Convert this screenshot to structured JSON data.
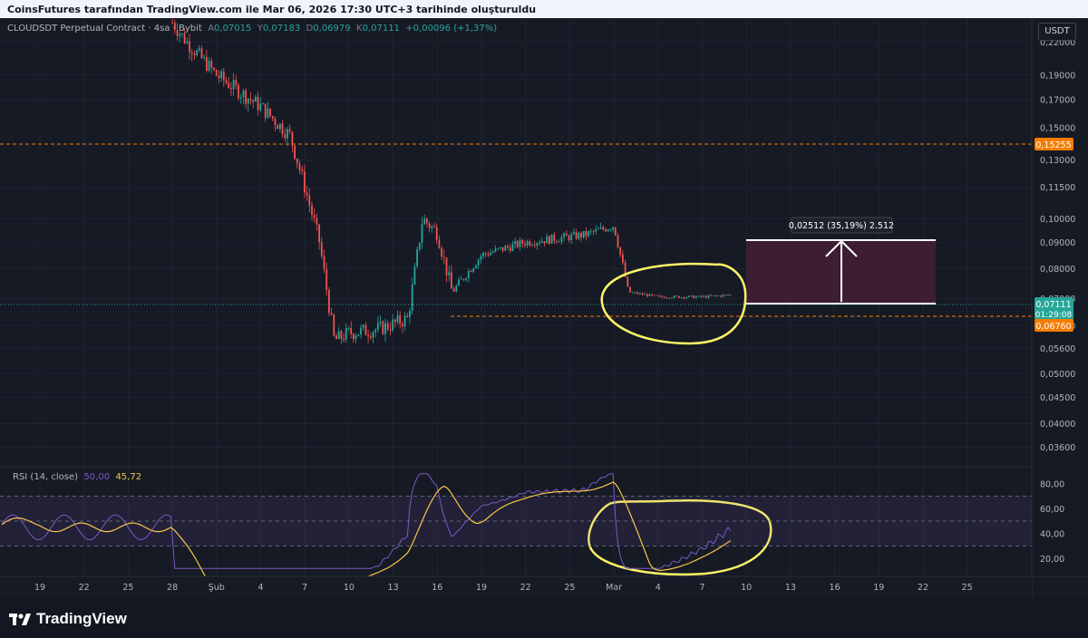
{
  "header": {
    "attribution": "CoinsFutures tarafından TradingView.com ile Mar 06, 2026 17:30 UTC+3 tarihinde oluşturuldu"
  },
  "legend": {
    "symbol": "CLOUDSDT Perpetual Contract · 4sa · Bybit",
    "o_label": "A",
    "o_value": "0,07015",
    "h_label": "Y",
    "h_value": "0,07183",
    "l_label": "D",
    "l_value": "0,06979",
    "c_label": "K",
    "c_value": "0,07111",
    "change": "+0,00096 (+1,37%)"
  },
  "currency_button": "USDT",
  "rsi_legend": {
    "name": "RSI (14, close)",
    "value1": "50,00",
    "value2": "45,72"
  },
  "brand": {
    "name": "TradingView"
  },
  "colors": {
    "bg": "#161a25",
    "up": "#26a69a",
    "down": "#ef5350",
    "orange": "#f57c00",
    "rsi_line": "#7e57c2",
    "rsi_ma": "#f7c547",
    "annotation": "#fff566"
  },
  "chart_data": [
    {
      "type": "candlestick",
      "title": "CLOUDSDT Perpetual Contract · 4sa · Bybit",
      "y_axis_ticks": [
        "0,22000",
        "0,19000",
        "0,17000",
        "0,15000",
        "0,13000",
        "0,11500",
        "0,10000",
        "0,09000",
        "0,08000",
        "0,07000",
        "0,06200",
        "0,05600",
        "0,05000",
        "0,04500",
        "0,04000",
        "0,03600"
      ],
      "y_scale": "log",
      "ylim": [
        0.033,
        0.245
      ],
      "x_axis_ticks": [
        "19",
        "22",
        "25",
        "28",
        "Şub",
        "4",
        "7",
        "10",
        "13",
        "16",
        "19",
        "22",
        "25",
        "Mar",
        "4",
        "7",
        "10",
        "13",
        "16",
        "19",
        "22",
        "25"
      ],
      "price_path_key_points": [
        {
          "x": "28 Oca",
          "y": 0.24
        },
        {
          "x": "29 Oca",
          "y": 0.22
        },
        {
          "x": "31 Oca",
          "y": 0.19
        },
        {
          "x": "2 Şub",
          "y": 0.165
        },
        {
          "x": "4 Şub",
          "y": 0.145
        },
        {
          "x": "5 Şub",
          "y": 0.115
        },
        {
          "x": "6 Şub",
          "y": 0.09
        },
        {
          "x": "7 Şub",
          "y": 0.058
        },
        {
          "x": "8 Şub",
          "y": 0.06
        },
        {
          "x": "10 Şub",
          "y": 0.061
        },
        {
          "x": "12 Şub",
          "y": 0.064
        },
        {
          "x": "13 Şub",
          "y": 0.1
        },
        {
          "x": "14 Şub",
          "y": 0.094
        },
        {
          "x": "15 Şub",
          "y": 0.072
        },
        {
          "x": "17 Şub",
          "y": 0.085
        },
        {
          "x": "20 Şub",
          "y": 0.09
        },
        {
          "x": "24 Şub",
          "y": 0.093
        },
        {
          "x": "26 Şub",
          "y": 0.097
        },
        {
          "x": "27 Şub",
          "y": 0.072
        },
        {
          "x": "Mar",
          "y": 0.0705
        },
        {
          "x": "4 Mar",
          "y": 0.0705
        },
        {
          "x": "6 Mar",
          "y": 0.0711
        }
      ],
      "price_labels": [
        {
          "label": "0,15255",
          "color": "#f57c00"
        },
        {
          "label": "0,07111",
          "sublabel": "01:29:08",
          "color": "#26a69a"
        },
        {
          "label": "0,06760",
          "color": "#f57c00"
        }
      ],
      "measure_label": "0,02512 (35,19%) 2.512"
    },
    {
      "type": "line",
      "title": "RSI (14, close)",
      "y_axis_ticks": [
        "80,00",
        "60,00",
        "40,00",
        "20,00"
      ],
      "ylim": [
        10,
        90
      ],
      "bands": [
        70,
        50,
        30
      ],
      "series": [
        {
          "name": "RSI",
          "last": 45.72
        },
        {
          "name": "RSI MA",
          "last": 50.0
        }
      ]
    }
  ]
}
